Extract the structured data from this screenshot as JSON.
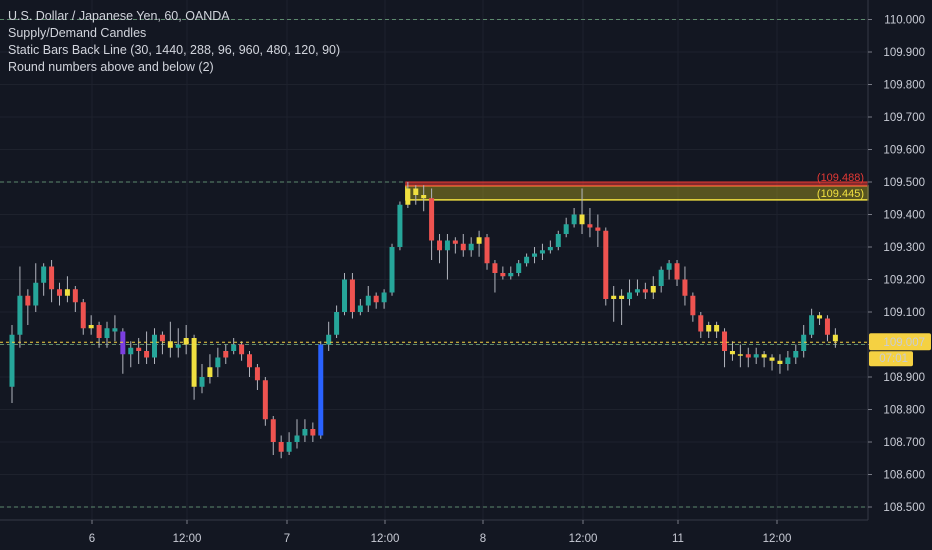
{
  "legend": {
    "title": "U.S. Dollar / Japanese Yen, 60, OANDA",
    "indicators": [
      "Supply/Demand Candles",
      "Static Bars Back Line (30, 1440, 288, 96, 960, 480, 120, 90)",
      "Round numbers above and below (2)"
    ]
  },
  "price_axis": {
    "labels": [
      "110.000",
      "109.900",
      "109.800",
      "109.700",
      "109.600",
      "109.500",
      "109.400",
      "109.300",
      "109.200",
      "109.100",
      "109.000",
      "108.900",
      "108.800",
      "108.700",
      "108.600",
      "108.500"
    ],
    "current_price": "109.007",
    "countdown": "07:01"
  },
  "time_axis": {
    "labels": [
      "6",
      "12:00",
      "7",
      "12:00",
      "8",
      "12:00",
      "11",
      "12:00"
    ]
  },
  "zones": {
    "red_label": "(109.488)",
    "yellow_label": "(109.445)"
  },
  "colors": {
    "background": "#131722",
    "up": "#26a69a",
    "down": "#ef5350",
    "yellow": "#f0e040",
    "purple": "#7b3fe0",
    "blue": "#2962ff",
    "price_tag": "#f5d142",
    "zone_red": "#e53935"
  },
  "chart_data": {
    "type": "candlestick",
    "title": "U.S. Dollar / Japanese Yen, 60, OANDA",
    "ylim": [
      108.46,
      110.06
    ],
    "x_tick_labels": [
      "6",
      "12:00",
      "7",
      "12:00",
      "8",
      "12:00",
      "11",
      "12:00"
    ],
    "round_levels": [
      110.0,
      109.5,
      109.0,
      108.5
    ],
    "zones": [
      {
        "name": "supply-red",
        "top": 109.5,
        "bottom": 109.488,
        "label": "(109.488)"
      },
      {
        "name": "supply-yellow",
        "top": 109.488,
        "bottom": 109.445,
        "label": "(109.445)"
      }
    ],
    "last_price": 109.007,
    "candles": [
      [
        108.87,
        109.03,
        109.06,
        108.82,
        "u"
      ],
      [
        109.03,
        109.15,
        109.24,
        108.99,
        "u"
      ],
      [
        109.15,
        109.12,
        109.17,
        109.06,
        "d"
      ],
      [
        109.12,
        109.19,
        109.25,
        109.1,
        "u"
      ],
      [
        109.19,
        109.24,
        109.25,
        109.15,
        "u"
      ],
      [
        109.24,
        109.17,
        109.26,
        109.13,
        "d"
      ],
      [
        109.17,
        109.15,
        109.19,
        109.12,
        "d"
      ],
      [
        109.15,
        109.17,
        109.21,
        109.13,
        "y"
      ],
      [
        109.17,
        109.13,
        109.18,
        109.1,
        "d"
      ],
      [
        109.13,
        109.05,
        109.14,
        109.03,
        "d"
      ],
      [
        109.05,
        109.06,
        109.09,
        109.03,
        "y"
      ],
      [
        109.06,
        109.02,
        109.07,
        108.99,
        "d"
      ],
      [
        109.02,
        109.05,
        109.07,
        108.99,
        "u"
      ],
      [
        109.05,
        109.04,
        109.09,
        109.01,
        "u"
      ],
      [
        109.04,
        108.97,
        109.05,
        108.91,
        "p"
      ],
      [
        108.97,
        108.99,
        109.01,
        108.93,
        "u"
      ],
      [
        108.99,
        108.98,
        109.02,
        108.94,
        "d"
      ],
      [
        108.98,
        108.96,
        109.04,
        108.94,
        "d"
      ],
      [
        108.96,
        109.03,
        109.05,
        108.94,
        "u"
      ],
      [
        109.03,
        109.01,
        109.04,
        108.97,
        "d"
      ],
      [
        109.01,
        108.99,
        109.07,
        108.96,
        "y"
      ],
      [
        108.99,
        109.0,
        109.05,
        108.96,
        "u"
      ],
      [
        109.0,
        109.02,
        109.06,
        108.97,
        "y"
      ],
      [
        109.02,
        108.87,
        109.03,
        108.83,
        "y"
      ],
      [
        108.87,
        108.9,
        108.94,
        108.85,
        "u"
      ],
      [
        108.9,
        108.93,
        108.97,
        108.88,
        "y"
      ],
      [
        108.93,
        108.96,
        108.99,
        108.9,
        "u"
      ],
      [
        108.96,
        108.98,
        109.0,
        108.94,
        "d"
      ],
      [
        108.98,
        109.0,
        109.02,
        108.97,
        "u"
      ],
      [
        109.0,
        108.97,
        109.01,
        108.95,
        "d"
      ],
      [
        108.97,
        108.93,
        108.98,
        108.9,
        "d"
      ],
      [
        108.93,
        108.89,
        108.94,
        108.86,
        "d"
      ],
      [
        108.89,
        108.77,
        108.9,
        108.75,
        "d"
      ],
      [
        108.77,
        108.7,
        108.78,
        108.66,
        "d"
      ],
      [
        108.7,
        108.67,
        108.72,
        108.65,
        "d"
      ],
      [
        108.67,
        108.7,
        108.73,
        108.66,
        "u"
      ],
      [
        108.7,
        108.72,
        108.77,
        108.68,
        "u"
      ],
      [
        108.72,
        108.74,
        108.77,
        108.7,
        "u"
      ],
      [
        108.74,
        108.72,
        108.76,
        108.7,
        "d"
      ],
      [
        108.72,
        109.0,
        109.01,
        108.71,
        "b"
      ],
      [
        109.0,
        109.03,
        109.07,
        108.98,
        "u"
      ],
      [
        109.03,
        109.1,
        109.12,
        109.02,
        "u"
      ],
      [
        109.1,
        109.2,
        109.22,
        109.09,
        "u"
      ],
      [
        109.2,
        109.1,
        109.22,
        109.08,
        "d"
      ],
      [
        109.1,
        109.12,
        109.14,
        109.09,
        "u"
      ],
      [
        109.12,
        109.15,
        109.18,
        109.1,
        "u"
      ],
      [
        109.15,
        109.13,
        109.16,
        109.11,
        "d"
      ],
      [
        109.13,
        109.16,
        109.17,
        109.11,
        "u"
      ],
      [
        109.16,
        109.3,
        109.31,
        109.15,
        "u"
      ],
      [
        109.3,
        109.43,
        109.44,
        109.29,
        "u"
      ],
      [
        109.43,
        109.48,
        109.5,
        109.42,
        "y"
      ],
      [
        109.48,
        109.46,
        109.49,
        109.43,
        "y"
      ],
      [
        109.46,
        109.45,
        109.49,
        109.41,
        "y"
      ],
      [
        109.45,
        109.32,
        109.48,
        109.26,
        "d"
      ],
      [
        109.32,
        109.29,
        109.34,
        109.25,
        "d"
      ],
      [
        109.29,
        109.32,
        109.34,
        109.2,
        "u"
      ],
      [
        109.32,
        109.31,
        109.33,
        109.28,
        "d"
      ],
      [
        109.31,
        109.29,
        109.34,
        109.27,
        "d"
      ],
      [
        109.29,
        109.31,
        109.33,
        109.27,
        "u"
      ],
      [
        109.31,
        109.33,
        109.35,
        109.27,
        "y"
      ],
      [
        109.33,
        109.25,
        109.34,
        109.23,
        "d"
      ],
      [
        109.25,
        109.22,
        109.26,
        109.16,
        "d"
      ],
      [
        109.22,
        109.21,
        109.24,
        109.2,
        "d"
      ],
      [
        109.21,
        109.22,
        109.24,
        109.2,
        "u"
      ],
      [
        109.22,
        109.25,
        109.26,
        109.21,
        "u"
      ],
      [
        109.25,
        109.27,
        109.28,
        109.24,
        "u"
      ],
      [
        109.27,
        109.28,
        109.3,
        109.25,
        "u"
      ],
      [
        109.28,
        109.29,
        109.31,
        109.26,
        "u"
      ],
      [
        109.29,
        109.3,
        109.32,
        109.28,
        "u"
      ],
      [
        109.3,
        109.34,
        109.35,
        109.29,
        "u"
      ],
      [
        109.34,
        109.37,
        109.39,
        109.33,
        "u"
      ],
      [
        109.37,
        109.4,
        109.42,
        109.36,
        "u"
      ],
      [
        109.4,
        109.37,
        109.48,
        109.34,
        "y"
      ],
      [
        109.37,
        109.36,
        109.42,
        109.33,
        "d"
      ],
      [
        109.36,
        109.35,
        109.4,
        109.3,
        "d"
      ],
      [
        109.35,
        109.14,
        109.36,
        109.12,
        "d"
      ],
      [
        109.14,
        109.15,
        109.18,
        109.07,
        "y"
      ],
      [
        109.15,
        109.14,
        109.17,
        109.06,
        "y"
      ],
      [
        109.14,
        109.16,
        109.2,
        109.12,
        "u"
      ],
      [
        109.16,
        109.17,
        109.2,
        109.15,
        "u"
      ],
      [
        109.17,
        109.16,
        109.19,
        109.14,
        "d"
      ],
      [
        109.16,
        109.18,
        109.21,
        109.14,
        "y"
      ],
      [
        109.18,
        109.23,
        109.24,
        109.16,
        "u"
      ],
      [
        109.23,
        109.25,
        109.26,
        109.2,
        "u"
      ],
      [
        109.25,
        109.2,
        109.26,
        109.18,
        "d"
      ],
      [
        109.2,
        109.15,
        109.24,
        109.12,
        "d"
      ],
      [
        109.15,
        109.09,
        109.16,
        109.07,
        "d"
      ],
      [
        109.09,
        109.04,
        109.1,
        109.02,
        "d"
      ],
      [
        109.04,
        109.06,
        109.07,
        109.02,
        "y"
      ],
      [
        109.06,
        109.04,
        109.07,
        109.02,
        "y"
      ],
      [
        109.04,
        108.98,
        109.05,
        108.93,
        "d"
      ],
      [
        108.98,
        108.97,
        109.01,
        108.95,
        "y"
      ],
      [
        108.97,
        108.97,
        109.0,
        108.93,
        "y"
      ],
      [
        108.97,
        108.96,
        108.99,
        108.93,
        "d"
      ],
      [
        108.96,
        108.97,
        108.99,
        108.94,
        "u"
      ],
      [
        108.97,
        108.96,
        108.98,
        108.93,
        "y"
      ],
      [
        108.96,
        108.95,
        108.97,
        108.92,
        "y"
      ],
      [
        108.95,
        108.94,
        108.97,
        108.91,
        "y"
      ],
      [
        108.94,
        108.96,
        108.98,
        108.92,
        "u"
      ],
      [
        108.96,
        108.98,
        109.0,
        108.94,
        "u"
      ],
      [
        108.98,
        109.03,
        109.06,
        108.96,
        "u"
      ],
      [
        109.03,
        109.09,
        109.11,
        109.02,
        "u"
      ],
      [
        109.09,
        109.08,
        109.1,
        109.06,
        "y"
      ],
      [
        109.08,
        109.03,
        109.09,
        109.01,
        "d"
      ],
      [
        109.03,
        109.01,
        109.05,
        108.99,
        "y"
      ]
    ]
  }
}
